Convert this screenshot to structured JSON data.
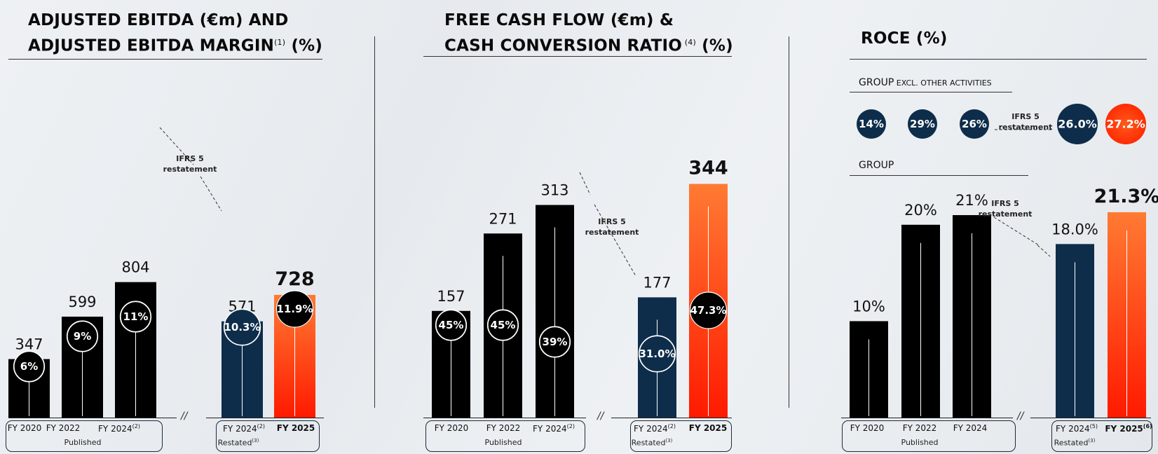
{
  "panels": {
    "ebitda": {
      "title_line1": "ADJUSTED EBITDA (€m) AND",
      "title_line2": "ADJUSTED EBITDA MARGIN",
      "title_sup": "(1)",
      "title_tail": " (%)"
    },
    "fcf": {
      "title_line1": "FREE CASH FLOW (€m) &",
      "title_line2": "CASH CONVERSION RATIO",
      "title_sup": " (4)",
      "title_tail": " (%)"
    },
    "roce": {
      "title": "ROCE (%)",
      "sub1_main": "GROUP",
      "sub1_small": " EXCL. OTHER ACTIVITIES",
      "sub2": "GROUP"
    }
  },
  "ifrs_line1": "IFRS 5",
  "ifrs_line2": "restatement",
  "group_published": "Published",
  "group_restated": "Restated",
  "restated_sup": "(3)",
  "colors": {
    "black": "#000000",
    "navy": "#0e2d4a",
    "orange_top": "#ff7a33",
    "orange_bottom": "#ff1a00"
  },
  "chart_data": [
    {
      "type": "bar",
      "title": "ADJUSTED EBITDA (€m) AND ADJUSTED EBITDA MARGIN(1) (%)",
      "categories": [
        "FY 2020",
        "FY 2022",
        "FY 2024(2)",
        "FY 2024(2)",
        "FY 2025"
      ],
      "series": [
        {
          "name": "Adjusted EBITDA (€m)",
          "values": [
            347,
            599,
            804,
            571,
            728
          ],
          "labels": [
            "347",
            "599",
            "804",
            "571",
            "728"
          ]
        },
        {
          "name": "Adjusted EBITDA margin (%)",
          "values": [
            6,
            9,
            11,
            10.3,
            11.9
          ],
          "labels": [
            "6%",
            "9%",
            "11%",
            "10.3%",
            "11.9%"
          ]
        }
      ],
      "groups": [
        "Published",
        "Published",
        "Published",
        "Restated(3)",
        "Restated(3)"
      ]
    },
    {
      "type": "bar",
      "title": "FREE CASH FLOW (€m) & CASH CONVERSION RATIO (4) (%)",
      "categories": [
        "FY 2020",
        "FY 2022",
        "FY 2024(2)",
        "FY 2024(2)",
        "FY 2025"
      ],
      "series": [
        {
          "name": "Free cash flow (€m)",
          "values": [
            157,
            271,
            313,
            177,
            344
          ],
          "labels": [
            "157",
            "271",
            "313",
            "177",
            "344"
          ]
        },
        {
          "name": "Cash conversion ratio (%)",
          "values": [
            45,
            45,
            39,
            31.0,
            47.3
          ],
          "labels": [
            "45%",
            "45%",
            "39%",
            "31.0%",
            "47.3%"
          ]
        }
      ],
      "groups": [
        "Published",
        "Published",
        "Published",
        "Restated(3)",
        "Restated(3)"
      ]
    },
    {
      "type": "bar",
      "title": "ROCE (%)",
      "categories": [
        "FY 2020",
        "FY 2022",
        "FY 2024",
        "FY 2024(5)",
        "FY 2025(6)"
      ],
      "series": [
        {
          "name": "GROUP EXCL. OTHER ACTIVITIES",
          "values": [
            14,
            29,
            26,
            26.0,
            27.2
          ],
          "labels": [
            "14%",
            "29%",
            "26%",
            "26.0%",
            "27.2%"
          ]
        },
        {
          "name": "GROUP",
          "values": [
            10,
            20,
            21,
            18.0,
            21.3
          ],
          "labels": [
            "10%",
            "20%",
            "21%",
            "18.0%",
            "21.3%"
          ]
        }
      ],
      "groups": [
        "Published",
        "Published",
        "Published",
        "Restated(3)",
        "Restated(3)"
      ]
    }
  ]
}
